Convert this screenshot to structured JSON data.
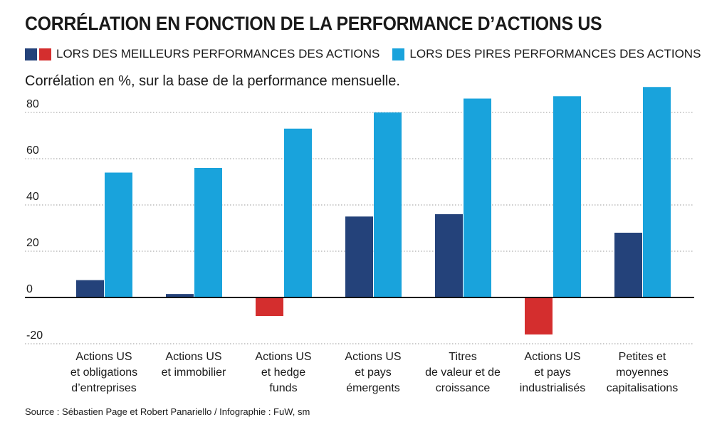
{
  "chart_data": {
    "type": "bar",
    "title": "CORRÉLATION EN FONCTION DE LA PERFORMANCE D’ACTIONS US",
    "subtitle": "Corrélation en %, sur la base de la performance mensuelle.",
    "legend": [
      {
        "name": "LORS DES MEILLEURS PERFORMANCES DES ACTIONS",
        "colors": [
          "#24427a",
          "#d42e2e"
        ]
      },
      {
        "name": "LORS DES PIRES PERFORMANCES DES ACTIONS",
        "colors": [
          "#19a3dc"
        ]
      }
    ],
    "categories": [
      [
        "Actions US",
        "et obligations",
        "d’entreprises"
      ],
      [
        "Actions US",
        "et immobilier"
      ],
      [
        "Actions US",
        "et hedge",
        "funds"
      ],
      [
        "Actions US",
        "et pays",
        "émergents"
      ],
      [
        "Titres",
        "de valeur et de",
        "croissance"
      ],
      [
        "Actions US",
        "et pays",
        "industrialisés"
      ],
      [
        "Petites et",
        "moyennes",
        "capitalisations"
      ]
    ],
    "series": [
      {
        "name": "LORS DES MEILLEURS PERFORMANCES DES ACTIONS",
        "values": [
          7.5,
          1.5,
          -8,
          35,
          36,
          -16,
          28
        ]
      },
      {
        "name": "LORS DES PIRES PERFORMANCES DES ACTIONS",
        "values": [
          54,
          56,
          73,
          80,
          86,
          87,
          91
        ]
      }
    ],
    "yticks": [
      80,
      60,
      40,
      20,
      0,
      -20
    ],
    "ylim": [
      -20,
      90
    ],
    "source": "Source : Sébastien Page et Robert Panariello / Infographie : FuW, sm"
  },
  "colors": {
    "best_positive": "#24427a",
    "best_negative": "#d42e2e",
    "worst": "#19a3dc"
  }
}
